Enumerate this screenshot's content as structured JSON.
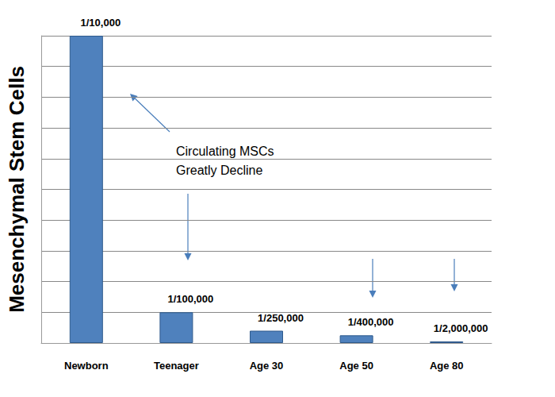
{
  "chart_data": {
    "type": "bar",
    "y_label": "Mesenchymal Stem Cells",
    "categories": [
      "Newborn",
      "Teenager",
      "Age 30",
      "Age 50",
      "Age 80"
    ],
    "values": [
      0.0001,
      1e-05,
      4e-06,
      2.5e-06,
      5e-07
    ],
    "value_labels": [
      "1/10,000",
      "1/100,000",
      "1/250,000",
      "1/400,000",
      "1/2,000,000"
    ],
    "color": "#4f81bd",
    "ylim": [
      0,
      0.0001
    ],
    "yticks": [
      0,
      1e-05,
      2e-05,
      3e-05,
      4e-05,
      5e-05,
      6e-05,
      7e-05,
      8e-05,
      9e-05,
      0.0001
    ],
    "grid": true,
    "data_labels": true,
    "tick_labels": "x",
    "annotations": [
      "Circulating MSCs\nGreatly Decline"
    ]
  }
}
